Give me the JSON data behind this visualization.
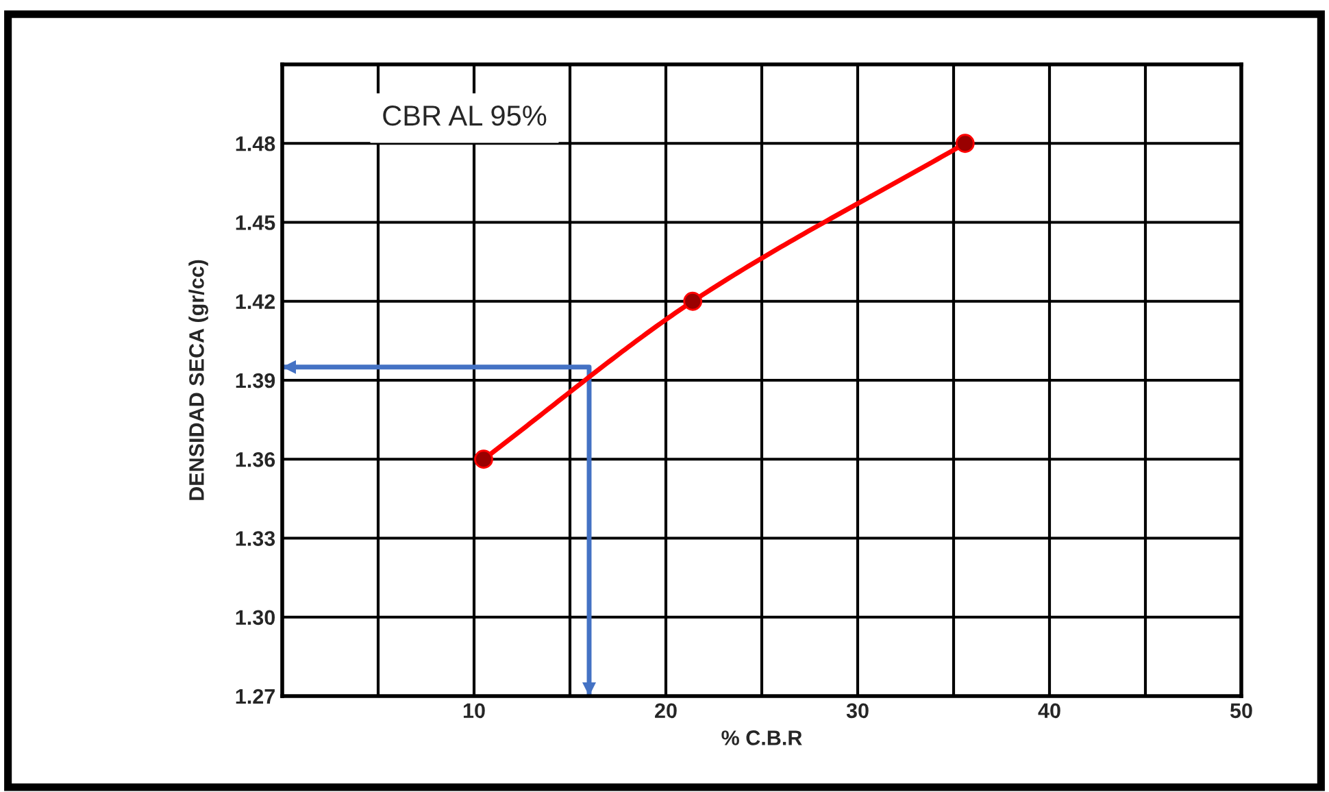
{
  "chart_data": {
    "type": "line",
    "xlabel": "% C.B.R",
    "ylabel": "DENSIDAD SECA (gr/cc)",
    "series": [
      {
        "color": "#ff0000",
        "x": [
          10.5,
          21.4,
          35.6
        ],
        "values": [
          1.36,
          1.42,
          1.48
        ]
      },
      {
        "type": "line",
        "marker": "none",
        "color": "#4472c4",
        "x": [
          16.0,
          16.0,
          0
        ],
        "values": [
          1.27,
          1.395,
          1.395
        ]
      }
    ],
    "marker": "circle",
    "line_style": "solid",
    "xlim": [
      0,
      50
    ],
    "xticks": [
      {
        "value": 5,
        "label": null
      },
      10,
      {
        "value": 15,
        "label": null
      },
      20,
      {
        "value": 25,
        "label": null
      },
      30,
      {
        "value": 35,
        "label": null
      },
      40,
      {
        "value": 45,
        "label": null
      },
      50
    ],
    "ylim": [
      1.27,
      1.51
    ],
    "yticks": [
      {
        "value": 1.27,
        "label": "1.27"
      },
      {
        "value": 1.3,
        "label": "1.30"
      },
      {
        "value": 1.33,
        "label": "1.33"
      },
      {
        "value": 1.36,
        "label": "1.36"
      },
      {
        "value": 1.39,
        "label": "1.39"
      },
      {
        "value": 1.42,
        "label": "1.42"
      },
      {
        "value": 1.45,
        "label": "1.45"
      },
      {
        "value": 1.48,
        "label": "1.48"
      },
      {
        "value": 1.51,
        "label": null
      }
    ],
    "grid": true,
    "annotations": [
      "CBR AL 95%"
    ]
  }
}
